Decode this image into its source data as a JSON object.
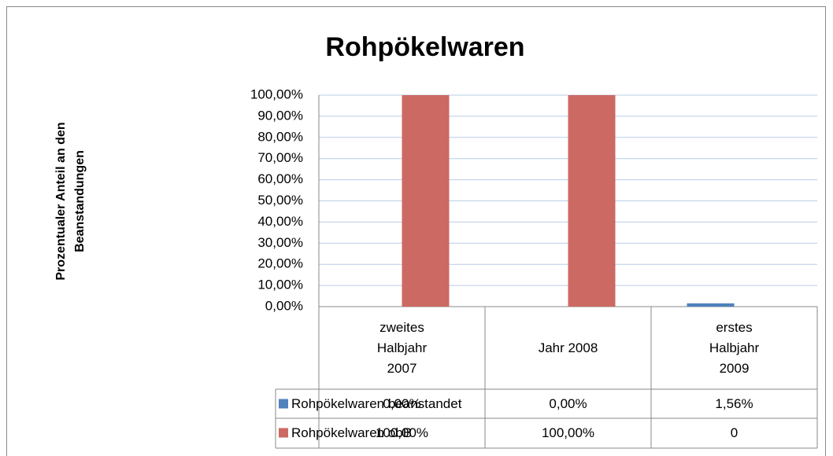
{
  "chart_data": {
    "type": "bar",
    "title": "Rohpökelwaren",
    "y_label": "Prozentualer Anteil an den Beanstandungen",
    "categories": [
      "zweites Halbjahr 2007",
      "Jahr 2008",
      "erstes Halbjahr 2009"
    ],
    "series": [
      {
        "name": "Rohpökelwaren beanstandet",
        "color": "#4f81bd",
        "values": [
          0,
          0,
          1.56
        ],
        "value_labels": [
          "0,00%",
          "0,00%",
          "1,56%"
        ]
      },
      {
        "name": "Rohpökelwaren obB",
        "color": "#cc6963",
        "values": [
          100,
          100,
          0
        ],
        "value_labels": [
          "100,00%",
          "100,00%",
          "0"
        ]
      }
    ],
    "ylim": [
      0,
      100
    ],
    "yticks": [
      {
        "value": 0,
        "label": "0,00%"
      },
      {
        "value": 10,
        "label": "10,00%"
      },
      {
        "value": 20,
        "label": "20,00%"
      },
      {
        "value": 30,
        "label": "30,00%"
      },
      {
        "value": 40,
        "label": "40,00%"
      },
      {
        "value": 50,
        "label": "50,00%"
      },
      {
        "value": 60,
        "label": "60,00%"
      },
      {
        "value": 70,
        "label": "70,00%"
      },
      {
        "value": 80,
        "label": "80,00%"
      },
      {
        "value": 90,
        "label": "90,00%"
      },
      {
        "value": 100,
        "label": "100,00%"
      }
    ],
    "grid": true
  }
}
